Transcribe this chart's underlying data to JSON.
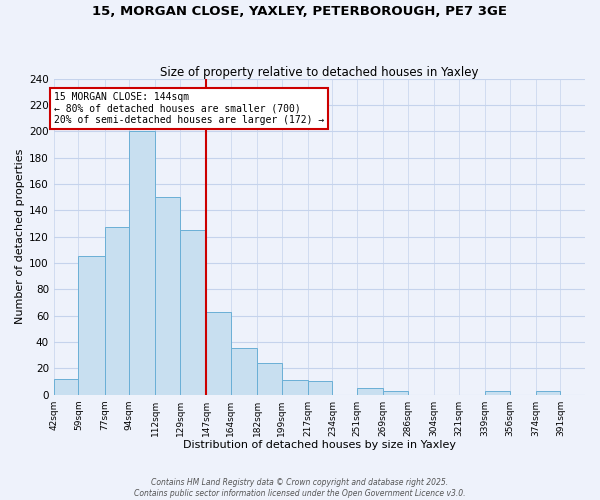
{
  "title1": "15, MORGAN CLOSE, YAXLEY, PETERBOROUGH, PE7 3GE",
  "title2": "Size of property relative to detached houses in Yaxley",
  "xlabel": "Distribution of detached houses by size in Yaxley",
  "ylabel": "Number of detached properties",
  "bin_labels": [
    "42sqm",
    "59sqm",
    "77sqm",
    "94sqm",
    "112sqm",
    "129sqm",
    "147sqm",
    "164sqm",
    "182sqm",
    "199sqm",
    "217sqm",
    "234sqm",
    "251sqm",
    "269sqm",
    "286sqm",
    "304sqm",
    "321sqm",
    "339sqm",
    "356sqm",
    "374sqm",
    "391sqm"
  ],
  "bin_edges": [
    42,
    59,
    77,
    94,
    112,
    129,
    147,
    164,
    182,
    199,
    217,
    234,
    251,
    269,
    286,
    304,
    321,
    339,
    356,
    374,
    391
  ],
  "bar_heights": [
    12,
    105,
    127,
    200,
    150,
    125,
    63,
    35,
    24,
    11,
    10,
    0,
    5,
    3,
    0,
    0,
    0,
    3,
    0,
    3
  ],
  "bar_color": "#c8dff0",
  "bar_edgecolor": "#6aafd6",
  "vline_x": 147,
  "vline_color": "#cc0000",
  "annotation_title": "15 MORGAN CLOSE: 144sqm",
  "annotation_line1": "← 80% of detached houses are smaller (700)",
  "annotation_line2": "20% of semi-detached houses are larger (172) →",
  "annotation_box_facecolor": "#ffffff",
  "annotation_box_edgecolor": "#cc0000",
  "ylim": [
    0,
    240
  ],
  "yticks": [
    0,
    20,
    40,
    60,
    80,
    100,
    120,
    140,
    160,
    180,
    200,
    220,
    240
  ],
  "footer1": "Contains HM Land Registry data © Crown copyright and database right 2025.",
  "footer2": "Contains public sector information licensed under the Open Government Licence v3.0.",
  "bg_color": "#eef2fb",
  "grid_color": "#c5d3ec",
  "title1_fontsize": 9.5,
  "title2_fontsize": 8.5,
  "xlabel_fontsize": 8,
  "ylabel_fontsize": 8,
  "ytick_fontsize": 7.5,
  "xtick_fontsize": 6.5
}
